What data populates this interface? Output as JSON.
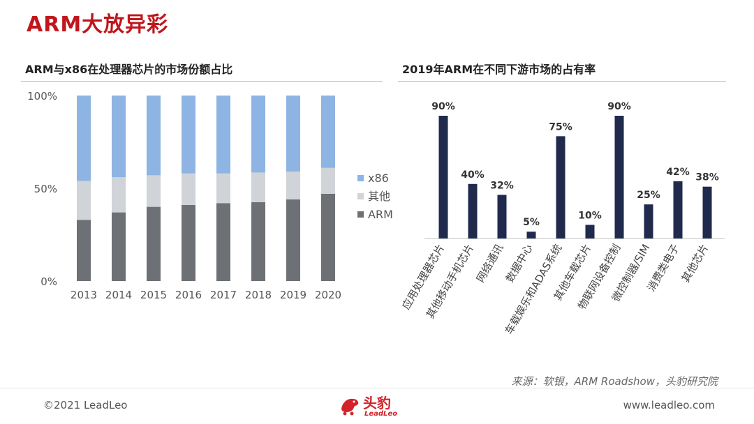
{
  "page": {
    "title": "ARM大放异彩",
    "source": "来源：软银，ARM Roadshow，头豹研究院",
    "copyright": "©2021 LeadLeo",
    "website": "www.leadleo.com",
    "logo_name": "头豹",
    "logo_sub": "LeadLeo"
  },
  "colors": {
    "brand": "#c0161c",
    "x86": "#8db4e2",
    "other": "#d0d3d7",
    "arm": "#6d7176",
    "bar_dark": "#1f2a4d"
  },
  "chart_data": [
    {
      "type": "bar",
      "stacked": true,
      "title": "ARM与x86在处理器芯片的市场份额占比",
      "categories": [
        "2013",
        "2014",
        "2015",
        "2016",
        "2017",
        "2018",
        "2019",
        "2020"
      ],
      "series": [
        {
          "name": "ARM",
          "values": [
            33,
            37,
            40,
            41,
            42,
            42.5,
            44,
            47
          ]
        },
        {
          "name": "其他",
          "values": [
            21,
            19,
            17,
            17,
            16,
            16,
            15,
            14
          ]
        },
        {
          "name": "x86",
          "values": [
            46,
            44,
            43,
            42,
            42,
            41.5,
            41,
            39
          ]
        }
      ],
      "yticks": [
        "0%",
        "50%",
        "100%"
      ],
      "ylim": [
        0,
        100
      ],
      "legend": "right",
      "grid": false
    },
    {
      "type": "bar",
      "title": "2019年ARM在不同下游市场的占有率",
      "categories": [
        "应用处理器芯片",
        "其他移动手机芯片",
        "网络通讯",
        "数据中心",
        "车载娱乐和ADAS系统",
        "其他车载芯片",
        "物联网设备控制",
        "微控制器/SIM",
        "消费类电子",
        "其他芯片"
      ],
      "values": [
        90,
        40,
        32,
        5,
        75,
        10,
        90,
        25,
        42,
        38
      ],
      "data_labels": [
        "90%",
        "40%",
        "32%",
        "5%",
        "75%",
        "10%",
        "90%",
        "25%",
        "42%",
        "38%"
      ],
      "ylim": [
        0,
        100
      ],
      "grid": false
    }
  ]
}
